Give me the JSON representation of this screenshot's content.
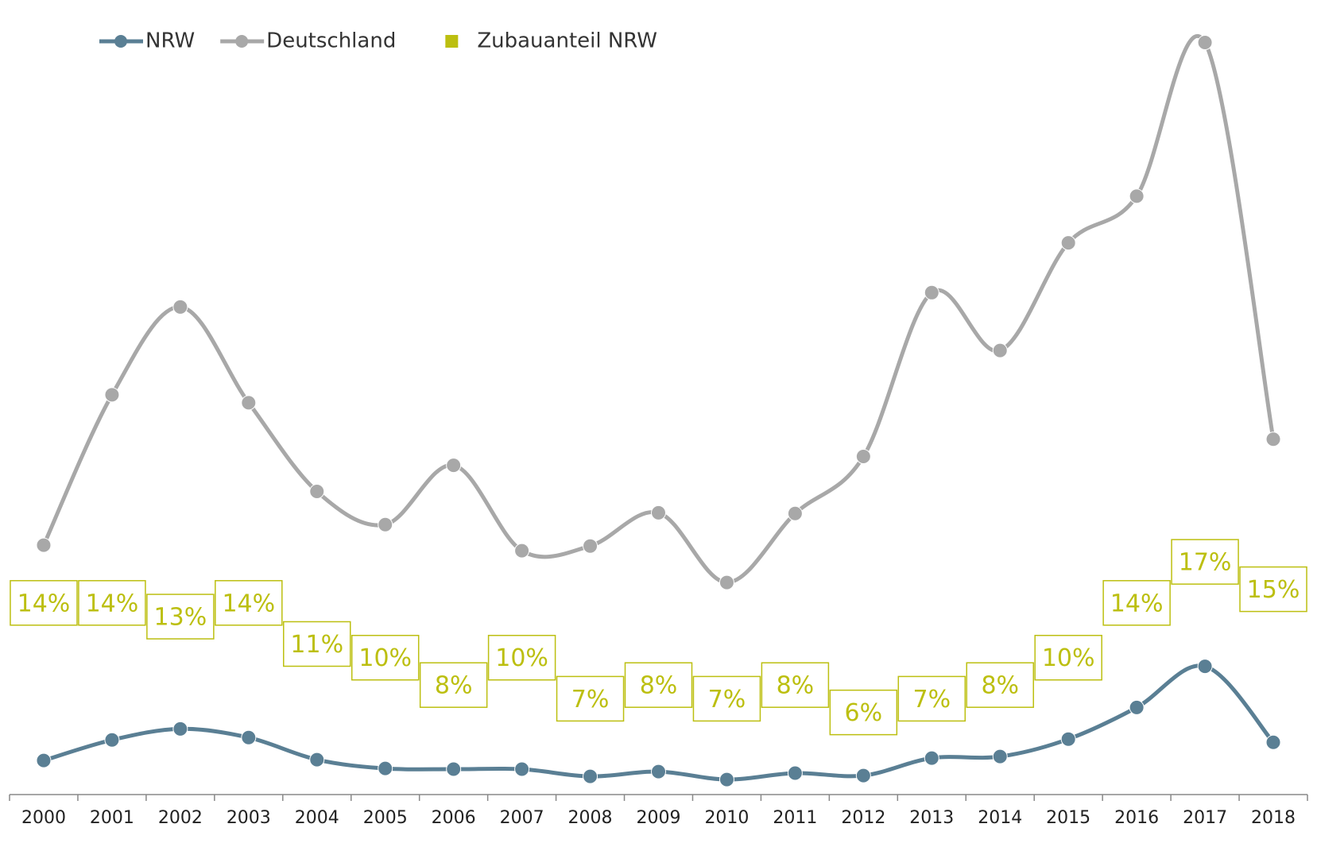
{
  "chart_data": {
    "type": "line",
    "categories": [
      "2000",
      "2001",
      "2002",
      "2003",
      "2004",
      "2005",
      "2006",
      "2007",
      "2008",
      "2009",
      "2010",
      "2011",
      "2012",
      "2013",
      "2014",
      "2015",
      "2016",
      "2017",
      "2018"
    ],
    "series": [
      {
        "name": "NRW",
        "color": "#5a7f94",
        "values": [
          240,
          385,
          463,
          402,
          246,
          184,
          179,
          179,
          128,
          162,
          106,
          151,
          134,
          257,
          268,
          391,
          614,
          904,
          368
        ]
      },
      {
        "name": "Deutschland",
        "color": "#a8a8a8",
        "values": [
          1758,
          2818,
          3437,
          2762,
          2137,
          1903,
          2321,
          1719,
          1752,
          1986,
          1495,
          1981,
          2383,
          3538,
          3130,
          3889,
          4218,
          5301,
          2505
        ]
      },
      {
        "name": "Zubauanteil NRW",
        "color": "#bcbf10",
        "axis": "y2",
        "values": [
          14,
          14,
          13,
          14,
          11,
          10,
          8,
          10,
          7,
          8,
          7,
          8,
          6,
          7,
          8,
          10,
          14,
          17,
          15
        ],
        "value_labels": [
          "14%",
          "14%",
          "13%",
          "14%",
          "11%",
          "10%",
          "8%",
          "10%",
          "7%",
          "8%",
          "7%",
          "8%",
          "6%",
          "7%",
          "8%",
          "10%",
          "14%",
          "17%",
          "15%"
        ]
      }
    ],
    "ylim": [
      0,
      5500
    ],
    "y2lim": [
      0,
      57
    ],
    "grid": false
  }
}
